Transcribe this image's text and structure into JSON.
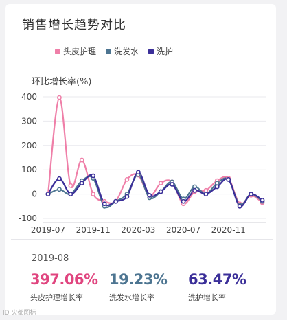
{
  "title": "销售增长趋势对比",
  "colors": {
    "s1": "#ef7fa8",
    "s2": "#4d7591",
    "s3": "#3b2f99",
    "grid": "#e9e9ee",
    "axis": "#cfcfd6"
  },
  "chart_data": {
    "type": "line",
    "ylabel": "环比增长率(%)",
    "ylim": [
      -100,
      400
    ],
    "yticks": [
      400,
      300,
      200,
      100,
      0,
      -100
    ],
    "xtick_labels": [
      "2019-07",
      "2019-11",
      "2020-03",
      "2020-07",
      "2020-11"
    ],
    "xtick_index": [
      0,
      4,
      8,
      12,
      16
    ],
    "grid": true,
    "legend_position": "top",
    "x": [
      "2019-07",
      "2019-08",
      "2019-09",
      "2019-10",
      "2019-11",
      "2019-12",
      "2020-01",
      "2020-02",
      "2020-03",
      "2020-04",
      "2020-05",
      "2020-06",
      "2020-07",
      "2020-08",
      "2020-09",
      "2020-10",
      "2020-11",
      "2020-12",
      "2021-01",
      "2021-02"
    ],
    "series": [
      {
        "name": "头皮护理",
        "values": [
          0,
          397.06,
          35,
          140,
          0,
          -30,
          -30,
          60,
          78,
          -8,
          45,
          50,
          -40,
          10,
          15,
          55,
          65,
          -40,
          -5,
          -35
        ]
      },
      {
        "name": "洗发水",
        "values": [
          0,
          19.23,
          0,
          55,
          65,
          -50,
          -30,
          0,
          80,
          -15,
          10,
          50,
          -20,
          30,
          0,
          45,
          60,
          -45,
          0,
          -30
        ]
      },
      {
        "name": "洗护",
        "values": [
          0,
          63.47,
          0,
          45,
          75,
          -40,
          -30,
          -10,
          90,
          -5,
          10,
          40,
          -30,
          15,
          0,
          30,
          60,
          -50,
          0,
          -25
        ]
      }
    ]
  },
  "info": {
    "date": "2019-08",
    "metrics": [
      {
        "value": "397.06%",
        "label": "头皮护理增长率"
      },
      {
        "value": "19.23%",
        "label": "洗发水增长率"
      },
      {
        "value": "63.47%",
        "label": "洗护增长率"
      }
    ]
  },
  "watermark": "ID 火都图标"
}
